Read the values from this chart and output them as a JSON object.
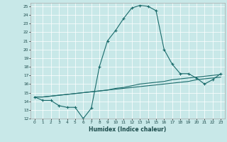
{
  "xlabel": "Humidex (Indice chaleur)",
  "bg_color": "#c8e8e8",
  "line_color": "#1a6b6b",
  "xlim": [
    -0.5,
    23.5
  ],
  "ylim": [
    12,
    25.4
  ],
  "xticks": [
    0,
    1,
    2,
    3,
    4,
    5,
    6,
    7,
    8,
    9,
    10,
    11,
    12,
    13,
    14,
    15,
    16,
    17,
    18,
    19,
    20,
    21,
    22,
    23
  ],
  "yticks": [
    12,
    13,
    14,
    15,
    16,
    17,
    18,
    19,
    20,
    21,
    22,
    23,
    24,
    25
  ],
  "line1_x": [
    0,
    1,
    2,
    3,
    4,
    5,
    6,
    7,
    8,
    9,
    10,
    11,
    12,
    13,
    14,
    15,
    16,
    17,
    18,
    19,
    20,
    21,
    22,
    23
  ],
  "line1_y": [
    14.5,
    14.1,
    14.1,
    13.5,
    13.3,
    13.3,
    12.0,
    13.2,
    18.0,
    21.0,
    22.2,
    23.6,
    24.8,
    25.1,
    25.0,
    24.5,
    20.0,
    18.3,
    17.2,
    17.2,
    16.7,
    16.0,
    16.5,
    17.2
  ],
  "line2_x": [
    0,
    1,
    2,
    3,
    4,
    5,
    6,
    7,
    8,
    9,
    10,
    11,
    12,
    13,
    14,
    15,
    16,
    17,
    18,
    19,
    20,
    21,
    22,
    23
  ],
  "line2_y": [
    14.5,
    14.5,
    14.6,
    14.7,
    14.8,
    14.9,
    15.0,
    15.1,
    15.2,
    15.3,
    15.4,
    15.5,
    15.6,
    15.7,
    15.8,
    15.9,
    16.0,
    16.1,
    16.2,
    16.3,
    16.5,
    16.6,
    16.7,
    16.8
  ],
  "line3_x": [
    0,
    1,
    2,
    3,
    4,
    5,
    6,
    7,
    8,
    9,
    10,
    11,
    12,
    13,
    14,
    15,
    16,
    17,
    18,
    19,
    20,
    21,
    22,
    23
  ],
  "line3_y": [
    14.5,
    14.5,
    14.6,
    14.7,
    14.8,
    14.9,
    15.0,
    15.1,
    15.2,
    15.3,
    15.5,
    15.6,
    15.8,
    16.0,
    16.1,
    16.2,
    16.3,
    16.5,
    16.6,
    16.7,
    16.8,
    16.9,
    17.0,
    17.1
  ]
}
